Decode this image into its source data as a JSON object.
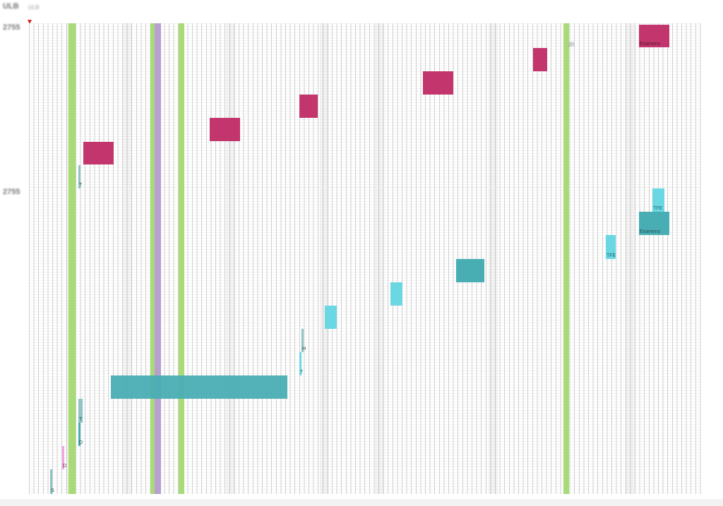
{
  "header": {
    "brand": "ULB",
    "subtitle": "ULB",
    "right_info": ""
  },
  "years": {
    "top": "2755",
    "middle": "2755"
  },
  "colors": {
    "exam": "#c2366d",
    "course_dark": "#49aeb3",
    "course_light": "#6ad7e3",
    "holiday": "#a8db76",
    "special": "#b79fd0",
    "pink_event": "#f2a6e0"
  },
  "week_labels": [
    "",
    "",
    "",
    "",
    "",
    ""
  ],
  "special_bars": {
    "jr": "JR"
  },
  "events": {
    "exam_top_right": "Examens",
    "exam_teal_right": "Examens",
    "tfe_upper": "TFE",
    "tfe_lower": "TFE",
    "slim_t_upper": "T",
    "slim_h": "H",
    "slim_t_mid": "T",
    "slim_t_lower": "T",
    "slim_d_teal": "D",
    "slim_d_pink": "D",
    "slim_s": "S"
  }
}
